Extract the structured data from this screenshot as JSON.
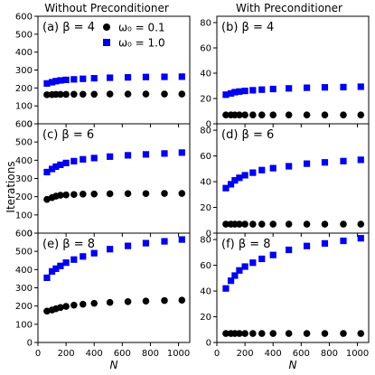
{
  "figure": {
    "col_titles": [
      "Without Preconditioner",
      "With Preconditioner"
    ],
    "ylabel": "Iterations",
    "xlabel": "N",
    "legend": [
      {
        "label": "ω₀ = 0.1",
        "marker": "circle",
        "color": "#000000"
      },
      {
        "label": "ω₀ = 1.0",
        "marker": "square",
        "color": "#0000ee"
      }
    ]
  },
  "chart_data": [
    {
      "type": "scatter",
      "panel": "(a)",
      "beta_label": "β = 4",
      "xlim": [
        0,
        1080
      ],
      "ylim": [
        0,
        600
      ],
      "xticks": [
        0,
        200,
        400,
        600,
        800,
        1000
      ],
      "yticks": [
        0,
        100,
        200,
        300,
        400,
        500,
        600
      ],
      "x": [
        64,
        100,
        128,
        160,
        200,
        256,
        320,
        400,
        512,
        640,
        768,
        900,
        1024
      ],
      "series": [
        {
          "name": "ω₀ = 0.1",
          "marker": "circle",
          "color": "#000000",
          "values": [
            162,
            163,
            164,
            164,
            164,
            165,
            165,
            165,
            166,
            166,
            166,
            166,
            166
          ]
        },
        {
          "name": "ω₀ = 1.0",
          "marker": "square",
          "color": "#0000ee",
          "values": [
            225,
            232,
            238,
            242,
            245,
            248,
            251,
            254,
            257,
            259,
            261,
            262,
            263
          ]
        }
      ]
    },
    {
      "type": "scatter",
      "panel": "(b)",
      "beta_label": "β = 4",
      "xlim": [
        0,
        1080
      ],
      "ylim": [
        0,
        85
      ],
      "xticks": [
        0,
        200,
        400,
        600,
        800,
        1000
      ],
      "yticks": [
        0,
        20,
        40,
        60,
        80
      ],
      "x": [
        64,
        100,
        128,
        160,
        200,
        256,
        320,
        400,
        512,
        640,
        768,
        900,
        1024
      ],
      "series": [
        {
          "name": "ω₀ = 0.1",
          "marker": "circle",
          "color": "#000000",
          "values": [
            7,
            7,
            7,
            7,
            7,
            7,
            7,
            7,
            7,
            7,
            7,
            7,
            7
          ]
        },
        {
          "name": "ω₀ = 1.0",
          "marker": "square",
          "color": "#0000ee",
          "values": [
            23,
            24,
            25,
            25.5,
            26,
            26.5,
            27,
            27.5,
            28,
            28.5,
            28.8,
            29,
            29.3
          ]
        }
      ]
    },
    {
      "type": "scatter",
      "panel": "(c)",
      "beta_label": "β = 6",
      "xlim": [
        0,
        1080
      ],
      "ylim": [
        0,
        600
      ],
      "xticks": [
        0,
        200,
        400,
        600,
        800,
        1000
      ],
      "yticks": [
        0,
        100,
        200,
        300,
        400,
        500,
        600
      ],
      "x": [
        64,
        100,
        128,
        160,
        200,
        256,
        320,
        400,
        512,
        640,
        768,
        900,
        1024
      ],
      "series": [
        {
          "name": "ω₀ = 0.1",
          "marker": "circle",
          "color": "#000000",
          "values": [
            185,
            195,
            203,
            208,
            210,
            212,
            214,
            215,
            216,
            217,
            217,
            218,
            218
          ]
        },
        {
          "name": "ω₀ = 1.0",
          "marker": "square",
          "color": "#0000ee",
          "values": [
            335,
            352,
            365,
            375,
            385,
            395,
            405,
            412,
            420,
            427,
            432,
            437,
            442
          ]
        }
      ]
    },
    {
      "type": "scatter",
      "panel": "(d)",
      "beta_label": "β = 6",
      "xlim": [
        0,
        1080
      ],
      "ylim": [
        0,
        85
      ],
      "xticks": [
        0,
        200,
        400,
        600,
        800,
        1000
      ],
      "yticks": [
        0,
        20,
        40,
        60,
        80
      ],
      "x": [
        64,
        100,
        128,
        160,
        200,
        256,
        320,
        400,
        512,
        640,
        768,
        900,
        1024
      ],
      "series": [
        {
          "name": "ω₀ = 0.1",
          "marker": "circle",
          "color": "#000000",
          "values": [
            7,
            7,
            7,
            7,
            7,
            7,
            7,
            7,
            7,
            7,
            7,
            7,
            7
          ]
        },
        {
          "name": "ω₀ = 1.0",
          "marker": "square",
          "color": "#0000ee",
          "values": [
            35,
            38,
            41,
            43,
            45,
            47,
            49,
            50.5,
            52,
            54,
            55,
            56,
            57
          ]
        }
      ]
    },
    {
      "type": "scatter",
      "panel": "(e)",
      "beta_label": "β = 8",
      "xlim": [
        0,
        1080
      ],
      "ylim": [
        0,
        600
      ],
      "xticks": [
        0,
        200,
        400,
        600,
        800,
        1000
      ],
      "yticks": [
        0,
        100,
        200,
        300,
        400,
        500,
        600
      ],
      "x": [
        64,
        100,
        128,
        160,
        200,
        256,
        320,
        400,
        512,
        640,
        768,
        900,
        1024
      ],
      "series": [
        {
          "name": "ω₀ = 0.1",
          "marker": "circle",
          "color": "#000000",
          "values": [
            172,
            178,
            185,
            192,
            198,
            205,
            210,
            215,
            220,
            224,
            227,
            230,
            232
          ]
        },
        {
          "name": "ω₀ = 1.0",
          "marker": "square",
          "color": "#0000ee",
          "values": [
            355,
            390,
            405,
            420,
            438,
            455,
            472,
            490,
            512,
            530,
            545,
            555,
            565
          ]
        }
      ]
    },
    {
      "type": "scatter",
      "panel": "(f)",
      "beta_label": "β = 8",
      "xlim": [
        0,
        1080
      ],
      "ylim": [
        0,
        85
      ],
      "xticks": [
        0,
        200,
        400,
        600,
        800,
        1000
      ],
      "yticks": [
        0,
        20,
        40,
        60,
        80
      ],
      "x": [
        64,
        100,
        128,
        160,
        200,
        256,
        320,
        400,
        512,
        640,
        768,
        900,
        1024
      ],
      "series": [
        {
          "name": "ω₀ = 0.1",
          "marker": "circle",
          "color": "#000000",
          "values": [
            7,
            7,
            7,
            7,
            7,
            7,
            7,
            7,
            7,
            7,
            7,
            7,
            7
          ]
        },
        {
          "name": "ω₀ = 1.0",
          "marker": "square",
          "color": "#0000ee",
          "values": [
            42,
            48,
            52,
            56,
            59,
            62,
            65,
            68,
            72,
            75,
            77,
            79,
            81
          ]
        }
      ]
    }
  ]
}
